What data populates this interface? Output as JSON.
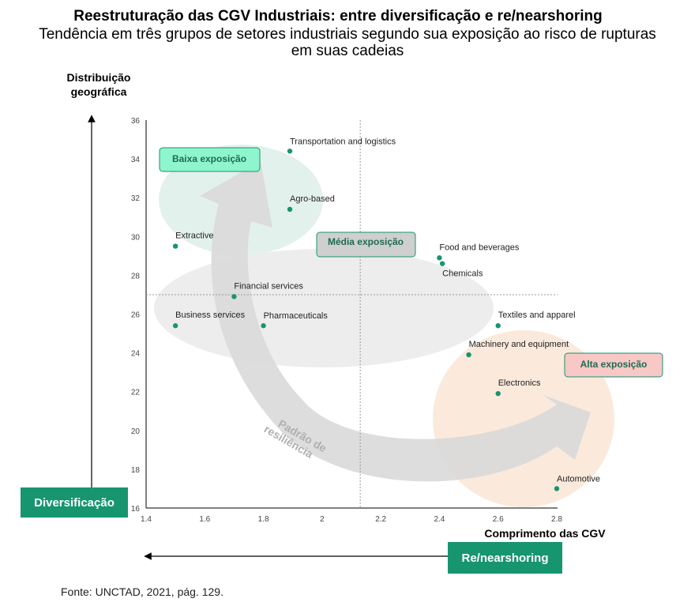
{
  "header": {
    "title": "Reestruturação das CGV Industriais: entre diversificação e re/nearshoring",
    "subtitle": "Tendência em três grupos de setores industriais segundo sua exposição ao risco de rupturas em suas cadeias"
  },
  "axis_labels": {
    "y": "Distribuição geográfica",
    "x": "Comprimento das CGV"
  },
  "side_boxes": {
    "left": "Diversificação",
    "bottom": "Re/nearshoring"
  },
  "arrow_label": "Padrão de resiliência",
  "source": "Fonte: UNCTAD, 2021, pág. 129.",
  "colors": {
    "point": "#16956f",
    "low_ellipse": "#e3f1ec",
    "mid_ellipse": "#ececec",
    "high_ellipse": "#fbeadb",
    "low_box": "#8ff5cc",
    "mid_box": "#cfcfcf",
    "high_box": "#f7c8c6",
    "arrow": "#d9d9d9",
    "side_box": "#16956f"
  },
  "chart_data": {
    "type": "scatter",
    "x_ticks": [
      "1.4",
      "1.6",
      "1.8",
      "2",
      "2.2",
      "2.4",
      "2.6",
      "2.8"
    ],
    "y_ticks": [
      "16",
      "18",
      "20",
      "22",
      "24",
      "26",
      "28",
      "30",
      "32",
      "34",
      "36"
    ],
    "xlim": [
      1.4,
      2.8
    ],
    "ylim": [
      16,
      36
    ],
    "reference_lines": {
      "x": 2.13,
      "y": 27
    },
    "points": [
      {
        "label": "Transportation and logistics",
        "x": 1.89,
        "y": 34.4
      },
      {
        "label": "Agro-based",
        "x": 1.89,
        "y": 31.4
      },
      {
        "label": "Extractive",
        "x": 1.5,
        "y": 29.5
      },
      {
        "label": "Food and beverages",
        "x": 2.4,
        "y": 28.9
      },
      {
        "label": "Chemicals",
        "x": 2.41,
        "y": 28.6
      },
      {
        "label": "Financial services",
        "x": 1.7,
        "y": 26.9
      },
      {
        "label": "Business services",
        "x": 1.5,
        "y": 25.4
      },
      {
        "label": "Pharmaceuticals",
        "x": 1.8,
        "y": 25.4
      },
      {
        "label": "Textiles and apparel",
        "x": 2.6,
        "y": 25.4
      },
      {
        "label": "Machinery and equipment",
        "x": 2.5,
        "y": 23.9
      },
      {
        "label": "Electronics",
        "x": 2.6,
        "y": 21.9
      },
      {
        "label": "Automotive",
        "x": 2.8,
        "y": 17
      }
    ],
    "groups": [
      {
        "name": "Baixa exposição"
      },
      {
        "name": "Média exposição"
      },
      {
        "name": "Alta exposição"
      }
    ],
    "grid": false
  }
}
